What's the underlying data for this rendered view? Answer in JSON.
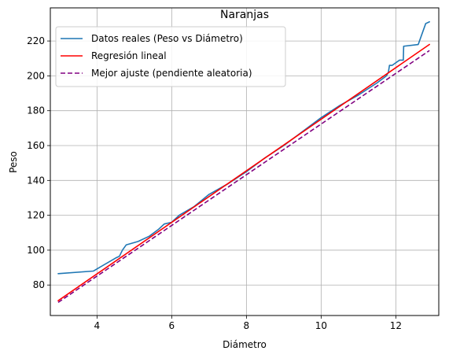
{
  "chart_data": {
    "type": "line",
    "title": "Naranjas",
    "xlabel": "Diámetro",
    "ylabel": "Peso",
    "xlim": [
      2.75,
      13.15
    ],
    "ylim": [
      62.5,
      239
    ],
    "xticks": [
      4,
      6,
      8,
      10,
      12
    ],
    "yticks": [
      80,
      100,
      120,
      140,
      160,
      180,
      200,
      220
    ],
    "grid": true,
    "legend_position": "top-left",
    "series": [
      {
        "name": "Datos reales (Peso vs Diámetro)",
        "color": "#1f77b4",
        "style": "solid",
        "x": [
          2.96,
          3.9,
          4.5,
          4.6,
          4.68,
          4.78,
          5.1,
          5.4,
          5.65,
          5.8,
          6.0,
          6.2,
          6.6,
          7.0,
          7.5,
          8.0,
          8.5,
          9.0,
          9.5,
          10.0,
          10.5,
          11.0,
          11.5,
          11.75,
          11.8,
          11.83,
          11.9,
          12.0,
          12.1,
          12.2,
          12.21,
          12.6,
          12.8,
          12.9
        ],
        "y": [
          86.5,
          88,
          95.5,
          96.5,
          100,
          103,
          105,
          108,
          112,
          115,
          116,
          120,
          125,
          132,
          138,
          145,
          153,
          160,
          168,
          176,
          183,
          189,
          196,
          200,
          202,
          206,
          206,
          207.5,
          209,
          209,
          217,
          218,
          230,
          231
        ]
      },
      {
        "name": "Regresión lineal",
        "color": "#ff0000",
        "style": "solid",
        "x": [
          2.96,
          12.9
        ],
        "y": [
          71,
          218
        ]
      },
      {
        "name": "Mejor ajuste (pendiente aleatoria)",
        "color": "#800080",
        "style": "dashed",
        "x": [
          2.96,
          12.9
        ],
        "y": [
          70,
          214.5
        ]
      }
    ]
  }
}
